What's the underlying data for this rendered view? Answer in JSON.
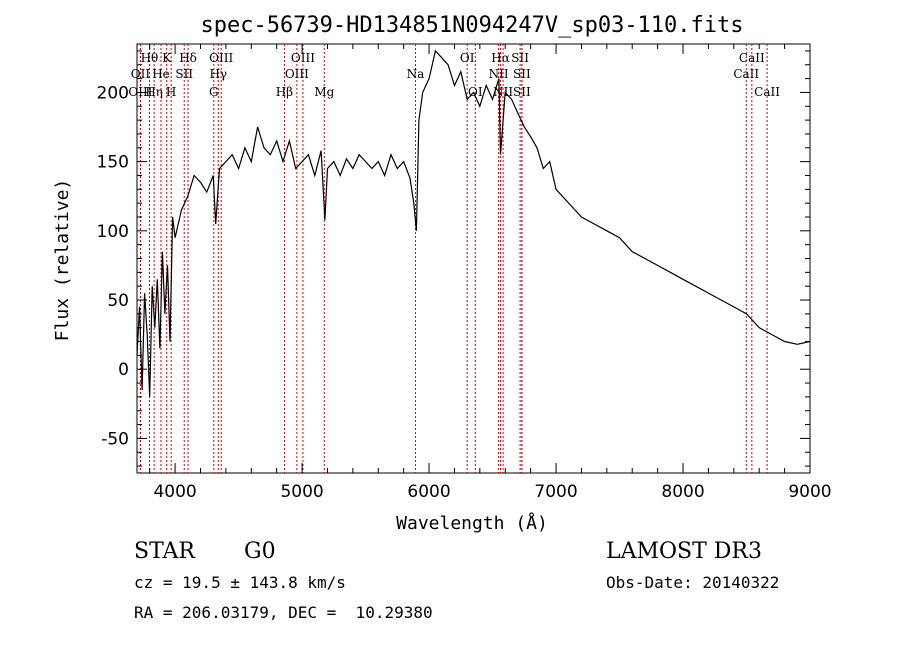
{
  "chart_data": {
    "type": "line",
    "title": "spec-56739-HD134851N094247V_sp03-110.fits",
    "xlabel": "Wavelength (Å)",
    "ylabel": "Flux (relative)",
    "xlim": [
      3700,
      9000
    ],
    "ylim": [
      -75,
      235
    ],
    "xticks": [
      4000,
      5000,
      6000,
      7000,
      8000,
      9000
    ],
    "yticks": [
      -50,
      0,
      50,
      100,
      150,
      200
    ],
    "grid": false,
    "series": [
      {
        "x": [
          3700,
          3720,
          3740,
          3760,
          3780,
          3800,
          3820,
          3840,
          3860,
          3880,
          3900,
          3920,
          3940,
          3960,
          3980,
          4000,
          4050,
          4100,
          4150,
          4200,
          4250,
          4300,
          4320,
          4350,
          4400,
          4450,
          4500,
          4550,
          4600,
          4650,
          4700,
          4750,
          4800,
          4850,
          4900,
          4950,
          5000,
          5050,
          5100,
          5150,
          5180,
          5200,
          5250,
          5300,
          5350,
          5400,
          5450,
          5500,
          5550,
          5600,
          5650,
          5700,
          5750,
          5800,
          5850,
          5880,
          5900,
          5920,
          5950,
          6000,
          6050,
          6100,
          6150,
          6200,
          6250,
          6300,
          6350,
          6400,
          6450,
          6500,
          6550,
          6563,
          6600,
          6650,
          6700,
          6750,
          6800,
          6850,
          6900,
          6950,
          7000,
          7100,
          7200,
          7300,
          7400,
          7500,
          7600,
          7700,
          7800,
          7900,
          8000,
          8100,
          8200,
          8300,
          8400,
          8500,
          8600,
          8700,
          8800,
          8900,
          9000
        ],
        "y": [
          10,
          45,
          -15,
          55,
          25,
          -20,
          60,
          30,
          65,
          15,
          85,
          40,
          75,
          20,
          110,
          95,
          115,
          125,
          140,
          135,
          128,
          140,
          105,
          145,
          150,
          155,
          145,
          160,
          150,
          175,
          160,
          155,
          165,
          150,
          165,
          145,
          150,
          155,
          140,
          158,
          108,
          145,
          150,
          140,
          152,
          145,
          155,
          150,
          145,
          150,
          140,
          155,
          145,
          150,
          138,
          120,
          100,
          180,
          200,
          210,
          230,
          225,
          220,
          205,
          215,
          195,
          200,
          190,
          205,
          195,
          210,
          155,
          200,
          195,
          185,
          175,
          168,
          160,
          145,
          150,
          130,
          120,
          110,
          105,
          100,
          95,
          85,
          80,
          75,
          70,
          65,
          60,
          55,
          50,
          45,
          40,
          30,
          25,
          20,
          18,
          20
        ]
      }
    ],
    "lines": [
      {
        "name": "Hθ",
        "wl": 3798,
        "row": 0
      },
      {
        "name": "OII",
        "wl": 3727,
        "row": 1
      },
      {
        "name": "OIII",
        "wl": 3727,
        "row": 2
      },
      {
        "name": "Hη",
        "wl": 3835,
        "row": 2
      },
      {
        "name": "He",
        "wl": 3889,
        "row": 1
      },
      {
        "name": "K",
        "wl": 3934,
        "row": 0
      },
      {
        "name": "H",
        "wl": 3969,
        "row": 2
      },
      {
        "name": "SII",
        "wl": 4072,
        "row": 1
      },
      {
        "name": "Hδ",
        "wl": 4102,
        "row": 0
      },
      {
        "name": "OIII",
        "wl": 4363,
        "row": 0
      },
      {
        "name": "Hγ",
        "wl": 4340,
        "row": 1
      },
      {
        "name": "G",
        "wl": 4305,
        "row": 2
      },
      {
        "name": "Hβ",
        "wl": 4861,
        "row": 2
      },
      {
        "name": "OIII",
        "wl": 5007,
        "row": 0
      },
      {
        "name": "OIII",
        "wl": 4959,
        "row": 1
      },
      {
        "name": "Mg",
        "wl": 5175,
        "row": 2
      },
      {
        "name": "Na",
        "wl": 5893,
        "row": 1
      },
      {
        "name": "OI",
        "wl": 6300,
        "row": 0
      },
      {
        "name": "OI",
        "wl": 6364,
        "row": 2
      },
      {
        "name": "Hα",
        "wl": 6563,
        "row": 0
      },
      {
        "name": "NII",
        "wl": 6548,
        "row": 1
      },
      {
        "name": "NII",
        "wl": 6583,
        "row": 2
      },
      {
        "name": "SII",
        "wl": 6717,
        "row": 0
      },
      {
        "name": "SII",
        "wl": 6731,
        "row": 1
      },
      {
        "name": "SII",
        "wl": 6731,
        "row": 2
      },
      {
        "name": "CaII",
        "wl": 8542,
        "row": 0
      },
      {
        "name": "CaII",
        "wl": 8498,
        "row": 1
      },
      {
        "name": "CaII",
        "wl": 8662,
        "row": 2
      }
    ]
  },
  "info": {
    "class": "STAR",
    "subclass": "G0",
    "survey": "LAMOST DR3",
    "cz": "cz = 19.5 ± 143.8 km/s",
    "obs_date": "Obs-Date: 20140322",
    "coords": "RA = 206.03179, DEC =  10.29380"
  },
  "colors": {
    "spectrum": "#000000",
    "line_markers": "#cc0000",
    "axes": "#000000"
  }
}
